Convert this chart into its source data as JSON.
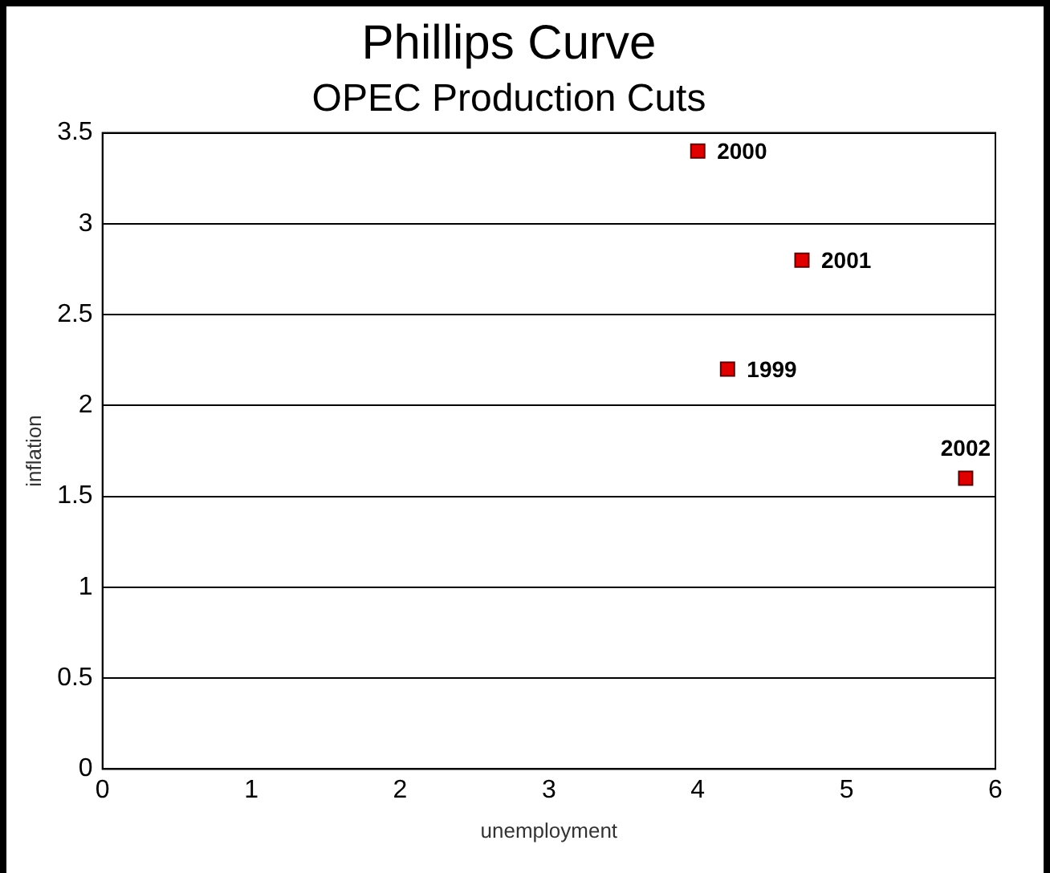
{
  "chart_data": {
    "type": "scatter",
    "title": "Phillips Curve",
    "subtitle": "OPEC Production Cuts",
    "xlabel": "unemployment",
    "ylabel": "inflation",
    "x": [
      4.2,
      4.0,
      4.7,
      5.8
    ],
    "series": [
      {
        "color": "#e00000",
        "values": [
          2.2,
          3.4,
          2.8,
          1.6
        ]
      }
    ],
    "annotations": [
      {
        "text": "1999",
        "x": 4.2,
        "y": 2.2
      },
      {
        "text": "2000",
        "x": 4.0,
        "y": 3.4
      },
      {
        "text": "2001",
        "x": 4.7,
        "y": 2.8
      },
      {
        "text": "2002",
        "x": 5.8,
        "y": 1.6
      }
    ],
    "xlim": [
      0,
      6
    ],
    "xticks": [
      0,
      1,
      2,
      3,
      4,
      5,
      6
    ],
    "ylim": [
      0,
      3.5
    ],
    "yticks": [
      0,
      0.5,
      1,
      1.5,
      2,
      2.5,
      3,
      3.5
    ],
    "grid": "y",
    "marker": "square",
    "legend": false
  }
}
